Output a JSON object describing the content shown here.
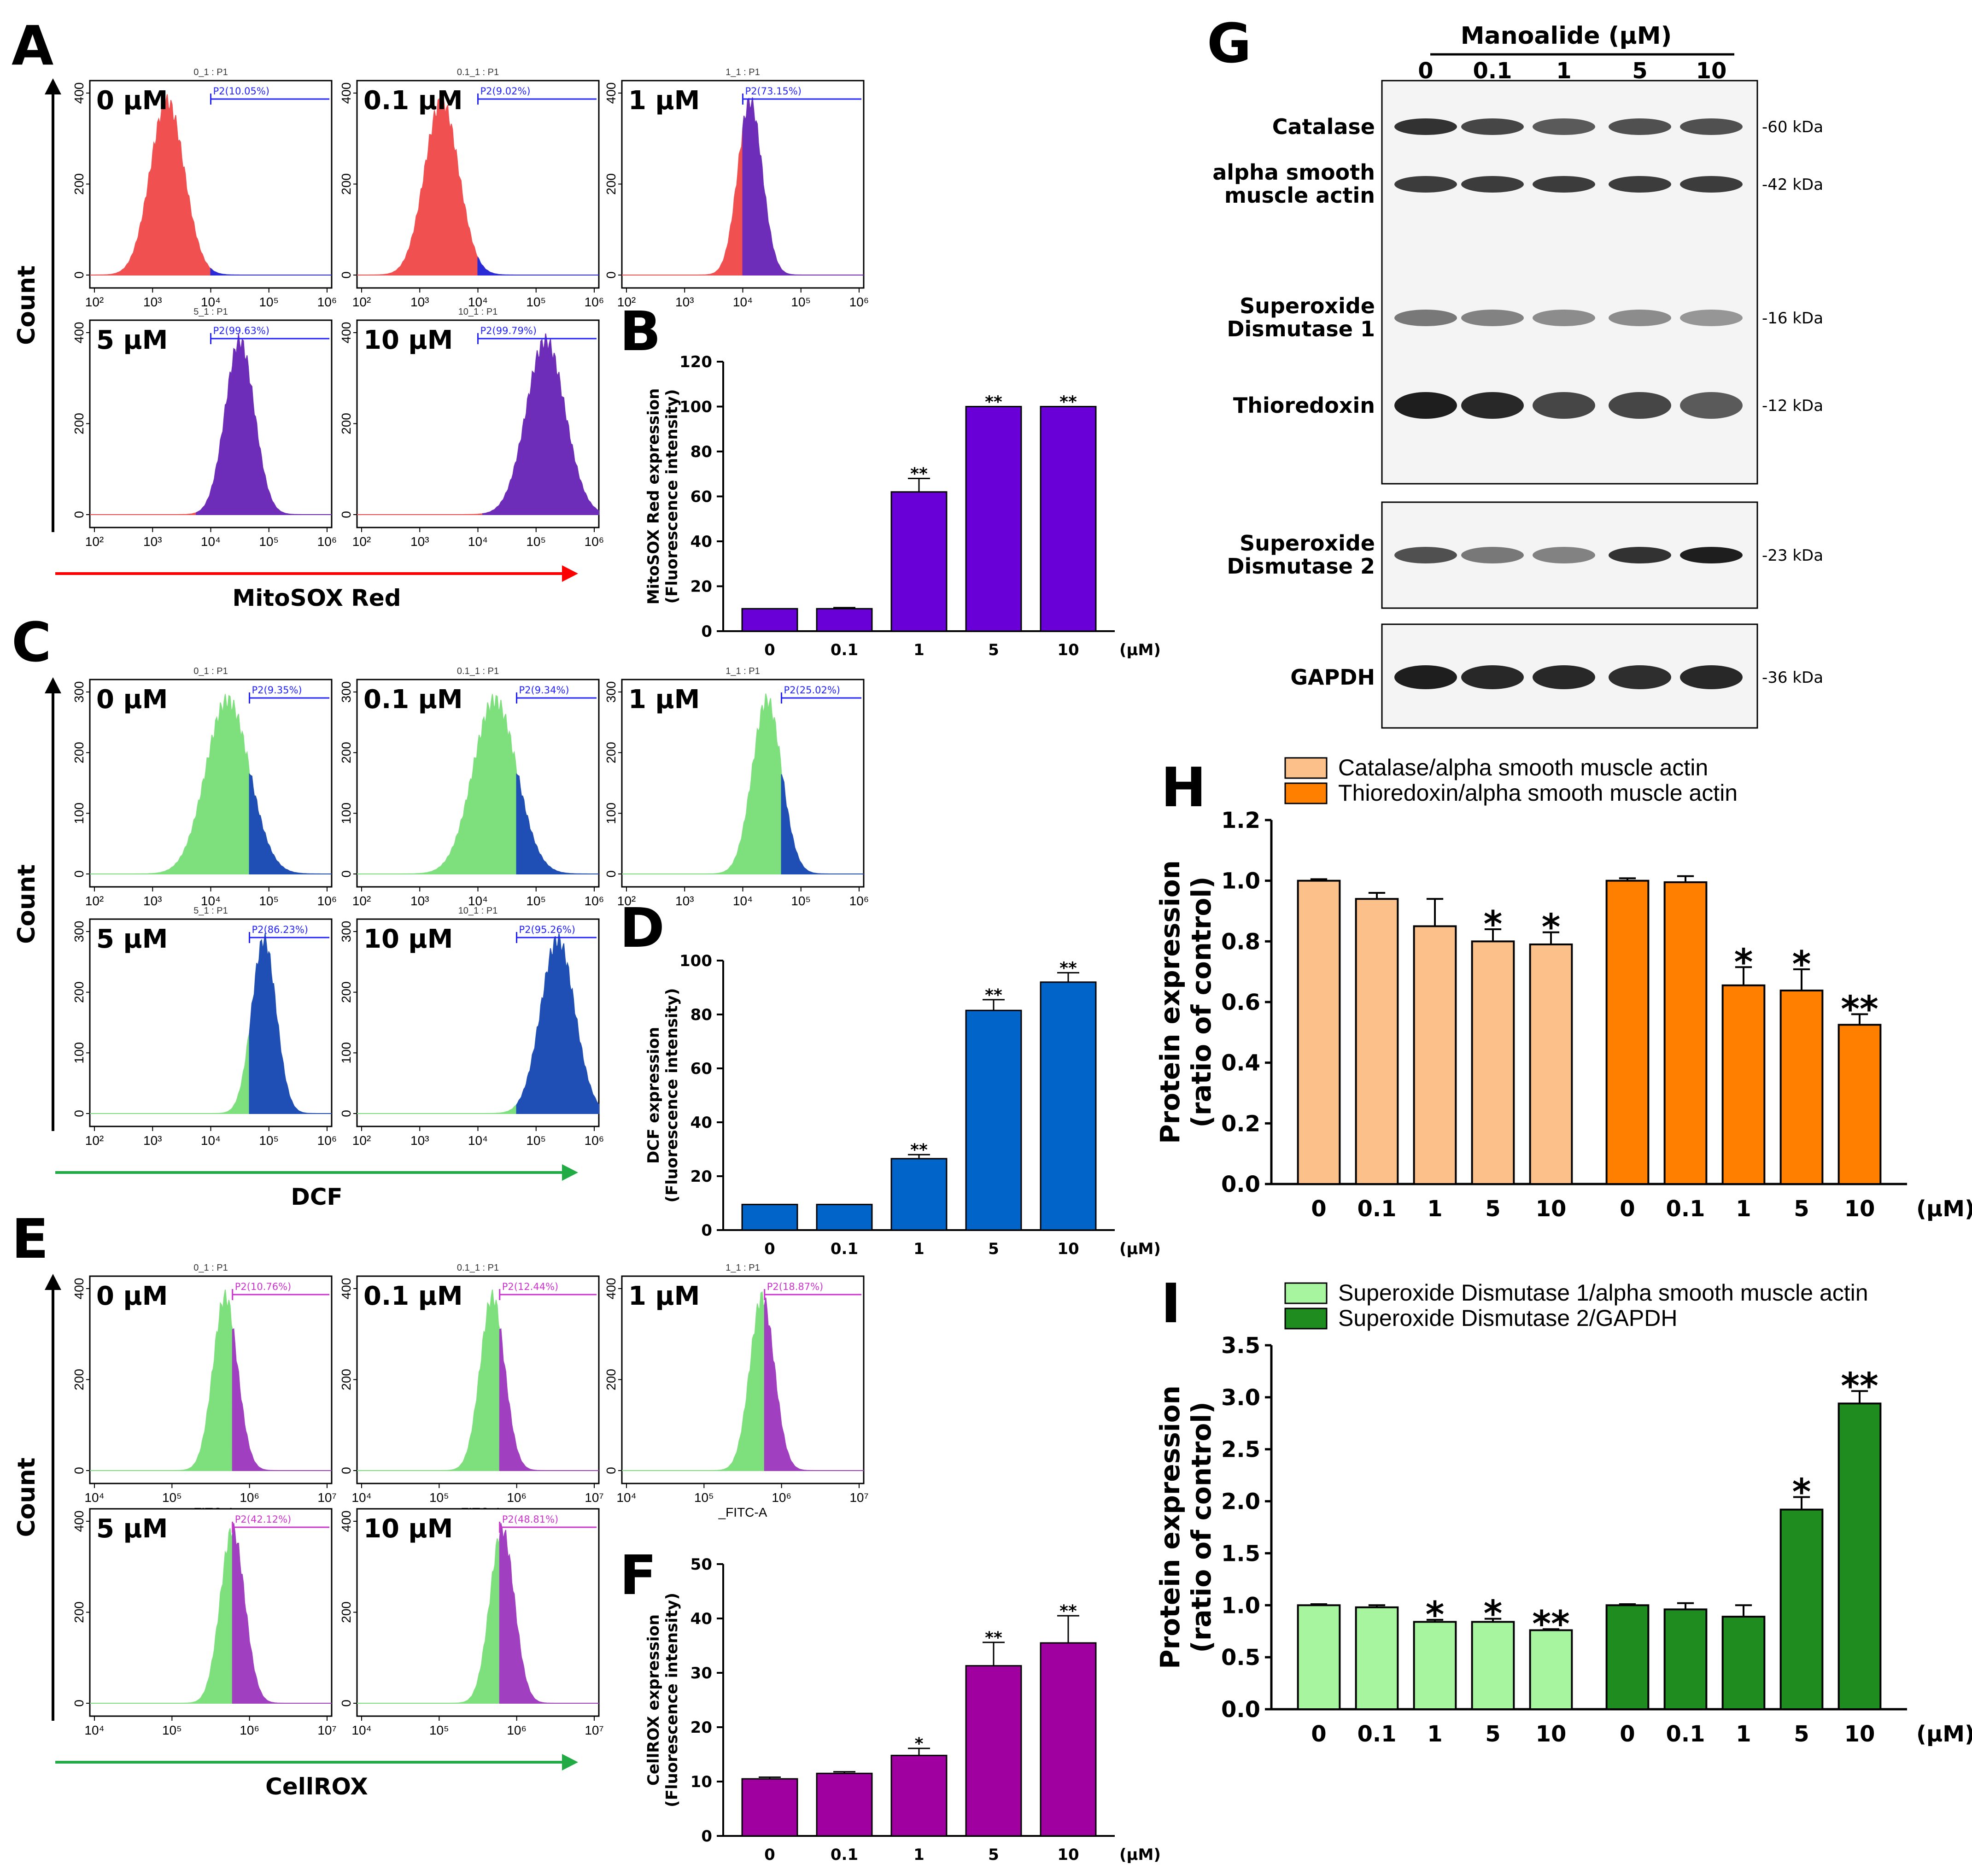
{
  "panel_labels": {
    "A": "A",
    "B": "B",
    "C": "C",
    "D": "D",
    "E": "E",
    "F": "F",
    "G": "G",
    "H": "H",
    "I": "I"
  },
  "axis_texts": {
    "count": "Count",
    "unit": "(μM)"
  },
  "flow_panels": [
    {
      "id": "A",
      "xlabel": "MitoSOX Red",
      "xlabel_color": "#ff0000",
      "gate_color": "#2222ff",
      "xticks": [
        "10²",
        "10³",
        "10⁴",
        "10⁵",
        "10⁶"
      ],
      "yticks": [
        "0",
        "200",
        "400"
      ],
      "plots": [
        {
          "dose": "0 μM",
          "title": "0_1 : P1",
          "gate": "P2(10.05%)",
          "colors": [
            "#f05050",
            "#2a2ad6"
          ],
          "peak": 0.32,
          "split": 0.5,
          "width": 0.07,
          "gate_start": 0.5
        },
        {
          "dose": "0.1 μM",
          "title": "0.1_1 : P1",
          "gate": "P2(9.02%)",
          "colors": [
            "#f05050",
            "#2a2ad6"
          ],
          "peak": 0.35,
          "split": 0.5,
          "width": 0.07,
          "gate_start": 0.5
        },
        {
          "dose": "1 μM",
          "title": "1_1 : P1",
          "gate": "P2(73.15%)",
          "colors": [
            "#f05050",
            "#6d2db8"
          ],
          "peak": 0.53,
          "split": 0.5,
          "width": 0.05,
          "gate_start": 0.5
        },
        {
          "dose": "5 μM",
          "title": "5_1 : P1",
          "gate": "P2(99.63%)",
          "colors": [
            "#f05050",
            "#6d2db8"
          ],
          "peak": 0.62,
          "split": 0.44,
          "width": 0.06,
          "gate_start": 0.5
        },
        {
          "dose": "10 μM",
          "title": "10_1 : P1",
          "gate": "P2(99.79%)",
          "colors": [
            "#f05050",
            "#6d2db8"
          ],
          "peak": 0.78,
          "split": 0.52,
          "width": 0.08,
          "gate_start": 0.5
        }
      ]
    },
    {
      "id": "C",
      "xlabel": "DCF",
      "xlabel_color": "#22aa44",
      "gate_color": "#2222ff",
      "xticks": [
        "10²",
        "10³",
        "10⁴",
        "10⁵",
        "10⁶"
      ],
      "yticks": [
        "0",
        "100",
        "200",
        "300"
      ],
      "plots": [
        {
          "dose": "0 μM",
          "title": "0_1 : P1",
          "gate": "P2(9.35%)",
          "colors": [
            "#7de07d",
            "#1f4fb5"
          ],
          "peak": 0.57,
          "split": 0.66,
          "width": 0.09,
          "gate_start": 0.66
        },
        {
          "dose": "0.1 μM",
          "title": "0.1_1 : P1",
          "gate": "P2(9.34%)",
          "colors": [
            "#7de07d",
            "#1f4fb5"
          ],
          "peak": 0.57,
          "split": 0.66,
          "width": 0.09,
          "gate_start": 0.66
        },
        {
          "dose": "1 μM",
          "title": "1_1 : P1",
          "gate": "P2(25.02%)",
          "colors": [
            "#7de07d",
            "#1f4fb5"
          ],
          "peak": 0.6,
          "split": 0.66,
          "width": 0.06,
          "gate_start": 0.66
        },
        {
          "dose": "5 μM",
          "title": "5_1 : P1",
          "gate": "P2(86.23%)",
          "colors": [
            "#7de07d",
            "#1f4fb5"
          ],
          "peak": 0.72,
          "split": 0.66,
          "width": 0.05,
          "gate_start": 0.66
        },
        {
          "dose": "10 μM",
          "title": "10_1 : P1",
          "gate": "P2(95.26%)",
          "colors": [
            "#7de07d",
            "#1f4fb5"
          ],
          "peak": 0.83,
          "split": 0.66,
          "width": 0.07,
          "gate_start": 0.66
        }
      ]
    },
    {
      "id": "E",
      "xlabel": "CellROX",
      "xlabel_color": "#22aa44",
      "gate_color": "#cc33cc",
      "xticks": [
        "10⁴",
        "10⁵",
        "10⁶",
        "10⁷"
      ],
      "yticks": [
        "0",
        "200",
        "400"
      ],
      "xsub": "_FITC-A",
      "plots": [
        {
          "dose": "0 μM",
          "title": "0_1 : P1",
          "gate": "P2(10.76%)",
          "colors": [
            "#7de07d",
            "#a040c0"
          ],
          "peak": 0.56,
          "split": 0.59,
          "width": 0.05,
          "gate_start": 0.59
        },
        {
          "dose": "0.1 μM",
          "title": "0.1_1 : P1",
          "gate": "P2(12.44%)",
          "colors": [
            "#7de07d",
            "#a040c0"
          ],
          "peak": 0.56,
          "split": 0.59,
          "width": 0.05,
          "gate_start": 0.59
        },
        {
          "dose": "1 μM",
          "title": "1_1 : P1",
          "gate": "P2(18.87%)",
          "colors": [
            "#7de07d",
            "#a040c0"
          ],
          "peak": 0.58,
          "split": 0.59,
          "width": 0.05,
          "gate_start": 0.59
        },
        {
          "dose": "5 μM",
          "title": "",
          "gate": "P2(42.12%)",
          "colors": [
            "#7de07d",
            "#a040c0"
          ],
          "peak": 0.59,
          "split": 0.59,
          "width": 0.05,
          "gate_start": 0.59
        },
        {
          "dose": "10 μM",
          "title": "",
          "gate": "P2(48.81%)",
          "colors": [
            "#7de07d",
            "#a040c0"
          ],
          "peak": 0.6,
          "split": 0.59,
          "width": 0.05,
          "gate_start": 0.59
        }
      ]
    }
  ],
  "chart_data": [
    {
      "id": "B",
      "type": "bar",
      "categories": [
        "0",
        "0.1",
        "1",
        "5",
        "10"
      ],
      "values": [
        10,
        10,
        62,
        100,
        100
      ],
      "errors": [
        0,
        0.5,
        6,
        0,
        0
      ],
      "stars": [
        "",
        "",
        "**",
        "**",
        "**"
      ],
      "ylabel": "MitoSOX Red expression\n(Fluorescence intensity)",
      "ylim": [
        0,
        120
      ],
      "yticks": [
        0,
        20,
        40,
        60,
        80,
        100,
        120
      ],
      "unit": "(μM)",
      "color": "#6a00d8"
    },
    {
      "id": "D",
      "type": "bar",
      "categories": [
        "0",
        "0.1",
        "1",
        "5",
        "10"
      ],
      "values": [
        9.5,
        9.5,
        26.5,
        81.5,
        92
      ],
      "errors": [
        0,
        0,
        1.5,
        4,
        3.5
      ],
      "stars": [
        "",
        "",
        "**",
        "**",
        "**"
      ],
      "ylabel": "DCF expression\n(Fluorescence intensity)",
      "ylim": [
        0,
        100
      ],
      "yticks": [
        0,
        20,
        40,
        60,
        80,
        100
      ],
      "unit": "(μM)",
      "color": "#0064c8"
    },
    {
      "id": "F",
      "type": "bar",
      "categories": [
        "0",
        "0.1",
        "1",
        "5",
        "10"
      ],
      "values": [
        10.5,
        11.5,
        14.8,
        31.3,
        35.5
      ],
      "errors": [
        0.3,
        0.3,
        1.3,
        4.3,
        5
      ],
      "stars": [
        "",
        "",
        "*",
        "**",
        "**"
      ],
      "ylabel": "CellROX expression\n(Fluorescence intensity)",
      "ylim": [
        0,
        50
      ],
      "yticks": [
        0,
        10,
        20,
        30,
        40,
        50
      ],
      "unit": "(μM)",
      "color": "#a000a0"
    },
    {
      "id": "H",
      "type": "bar",
      "categories": [
        "0",
        "0.1",
        "1",
        "5",
        "10"
      ],
      "series": [
        {
          "name": "Catalase/alpha smooth muscle actin",
          "values": [
            1.0,
            0.94,
            0.85,
            0.8,
            0.79
          ],
          "errors": [
            0.005,
            0.02,
            0.09,
            0.04,
            0.04
          ],
          "stars": [
            "",
            "",
            "",
            "*",
            "*"
          ],
          "color": "#fcc08a"
        },
        {
          "name": "Thioredoxin/alpha smooth muscle actin",
          "values": [
            1.0,
            0.995,
            0.655,
            0.638,
            0.525
          ],
          "errors": [
            0.008,
            0.02,
            0.06,
            0.07,
            0.035
          ],
          "stars": [
            "",
            "",
            "*",
            "*",
            "**"
          ],
          "color": "#ff7f00"
        }
      ],
      "ylabel": "Protein expression\n(ratio of control)",
      "ylim": [
        0,
        1.2
      ],
      "yticks": [
        "0.0",
        "0.2",
        "0.4",
        "0.6",
        "0.8",
        "1.0",
        "1.2"
      ],
      "unit": "(μM)"
    },
    {
      "id": "I",
      "type": "bar",
      "categories": [
        "0",
        "0.1",
        "1",
        "5",
        "10"
      ],
      "series": [
        {
          "name": "Superoxide Dismutase 1/alpha smooth muscle actin",
          "values": [
            1.0,
            0.98,
            0.84,
            0.84,
            0.76
          ],
          "errors": [
            0.01,
            0.02,
            0.02,
            0.03,
            0.01
          ],
          "stars": [
            "",
            "",
            "*",
            "*",
            "**"
          ],
          "color": "#a8f5a0"
        },
        {
          "name": "Superoxide Dismutase 2/GAPDH",
          "values": [
            1.0,
            0.96,
            0.89,
            1.92,
            2.94
          ],
          "errors": [
            0.01,
            0.06,
            0.11,
            0.12,
            0.12
          ],
          "stars": [
            "",
            "",
            "",
            "*",
            "**"
          ],
          "color": "#1e8c1e"
        }
      ],
      "ylabel": "Protein expression\n(ratio of control)",
      "ylim": [
        0,
        3.5
      ],
      "yticks": [
        "0.0",
        "0.5",
        "1.0",
        "1.5",
        "2.0",
        "2.5",
        "3.0",
        "3.5"
      ],
      "unit": "(μM)"
    }
  ],
  "western_blot": {
    "title": "Manoalide (μM)",
    "doses": [
      "0",
      "0.1",
      "1",
      "5",
      "10"
    ],
    "rows": [
      {
        "label1": "Catalase",
        "label2": "",
        "kda": "-60 kDa",
        "int": [
          0.9,
          0.8,
          0.7,
          0.75,
          0.75
        ]
      },
      {
        "label1": "alpha smooth",
        "label2": "muscle actin",
        "kda": "-42 kDa",
        "int": [
          0.85,
          0.85,
          0.85,
          0.85,
          0.85
        ]
      },
      {
        "label1": "Superoxide",
        "label2": "Dismutase 1",
        "kda": "-16 kDa",
        "int": [
          0.55,
          0.5,
          0.45,
          0.45,
          0.4
        ]
      },
      {
        "label1": "Thioredoxin",
        "label2": "",
        "kda": "-12 kDa",
        "int": [
          1.0,
          0.95,
          0.8,
          0.8,
          0.7
        ]
      },
      {
        "label1": "Superoxide",
        "label2": "Dismutase 2",
        "kda": "-23 kDa",
        "int": [
          0.75,
          0.55,
          0.5,
          0.9,
          1.0
        ]
      },
      {
        "label1": "GAPDH",
        "label2": "",
        "kda": "-36 kDa",
        "int": [
          1.0,
          0.95,
          0.95,
          0.92,
          0.95
        ]
      }
    ]
  }
}
